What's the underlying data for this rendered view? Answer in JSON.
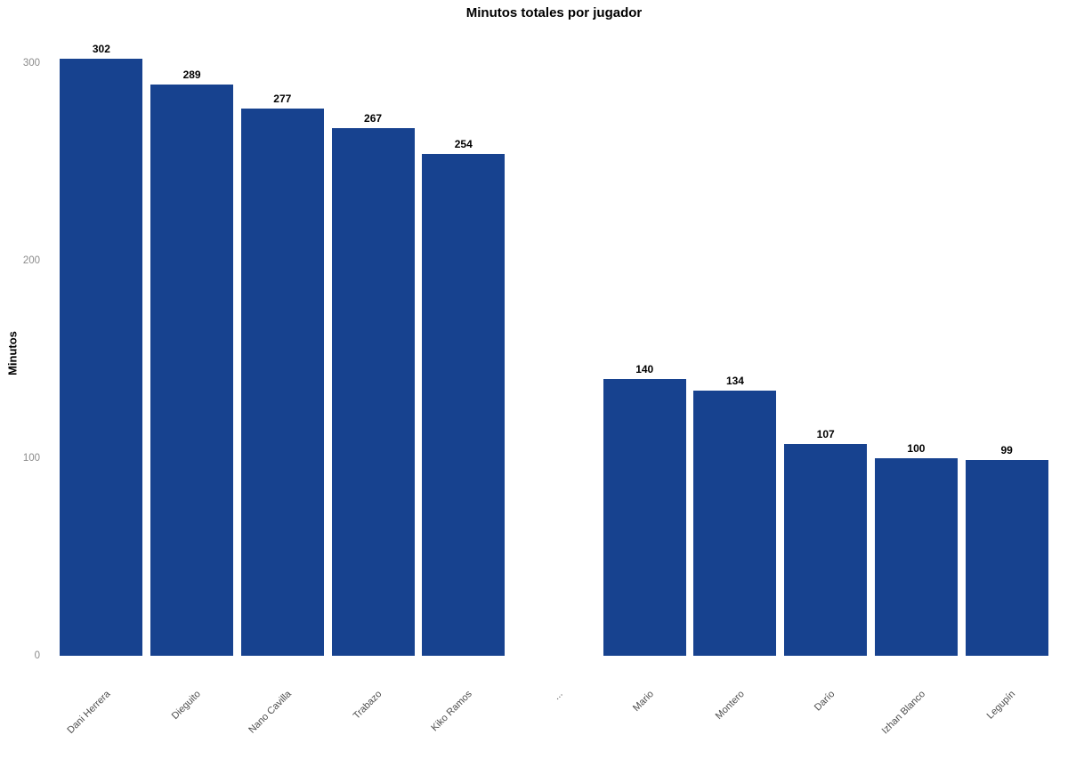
{
  "title": "Minutos totales por jugador",
  "colors": {
    "bar": "#17428f",
    "title_text": "#000000",
    "value_label_text": "#000000",
    "y_tick_text": "#8c8c8c",
    "x_tick_text": "#4d4d4d",
    "background": "#ffffff"
  },
  "chart_data": {
    "type": "bar",
    "title": "Minutos totales por jugador",
    "xlabel": "",
    "ylabel": "Minutos",
    "categories": [
      "Dani Herrera",
      "Dieguito",
      "Nano Cavilla",
      "Trabazo",
      "Kiko Ramos",
      "...",
      "Mario",
      "Montero",
      "Darío",
      "Izhan Blanco",
      "Legupín"
    ],
    "values": [
      302,
      289,
      277,
      267,
      254,
      null,
      140,
      134,
      107,
      100,
      99
    ],
    "yticks": [
      0,
      100,
      200,
      300
    ],
    "ylim": [
      0,
      315
    ],
    "bar_color": "#17428f",
    "grid": false,
    "legend": null,
    "value_labels": true,
    "xtick_rotation": 45
  }
}
